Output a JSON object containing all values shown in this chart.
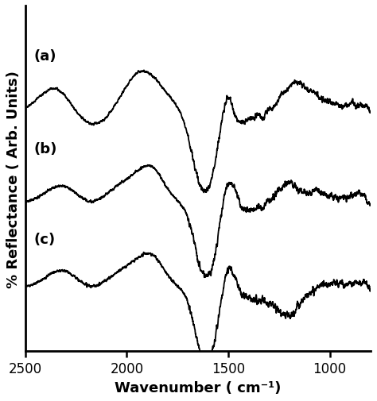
{
  "xlabel": "Wavenumber ( cm⁻¹)",
  "ylabel": "% Reflectance ( Arb. Units)",
  "labels": [
    "(a)",
    "(b)",
    "(c)"
  ],
  "background_color": "#ffffff",
  "line_color": "#000000",
  "xticks": [
    2500,
    2000,
    1500,
    1000
  ],
  "label_fontsize": 13,
  "tick_fontsize": 12,
  "linewidth": 1.3
}
